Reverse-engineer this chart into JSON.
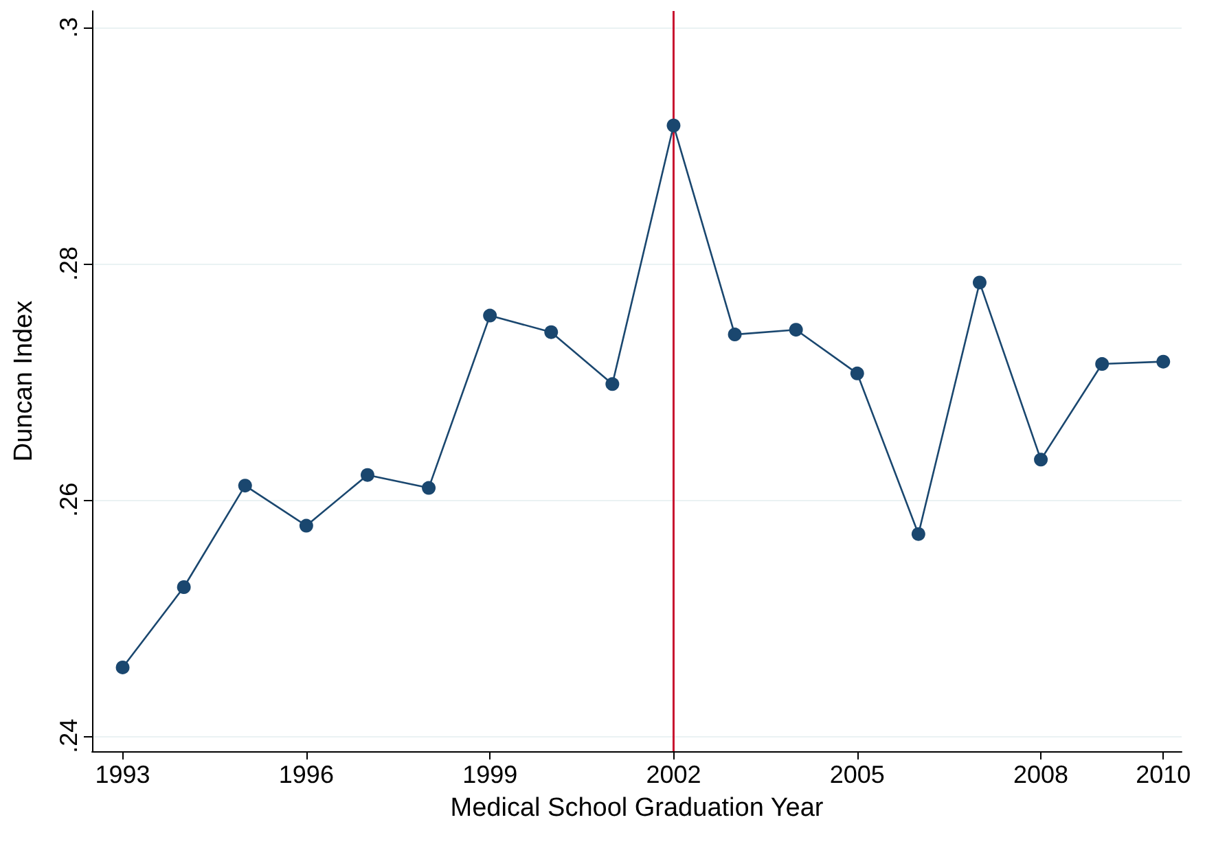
{
  "chart_data": {
    "type": "line",
    "xlabel": "Medical School Graduation Year",
    "ylabel": "Duncan Index",
    "x": [
      1993,
      1994,
      1995,
      1996,
      1997,
      1998,
      1999,
      2000,
      2001,
      2002,
      2003,
      2004,
      2005,
      2006,
      2007,
      2008,
      2009,
      2010
    ],
    "series": [
      {
        "color": "#1a476f",
        "values": [
          0.2458,
          0.2526,
          0.2612,
          0.2578,
          0.2621,
          0.261,
          0.2756,
          0.2742,
          0.2698,
          0.2917,
          0.274,
          0.2744,
          0.2707,
          0.2571,
          0.2784,
          0.2634,
          0.2715,
          0.2717
        ]
      }
    ],
    "xlim": [
      1992.5,
      2010.3
    ],
    "xticks": [
      1993,
      1996,
      1999,
      2002,
      2005,
      2008,
      2010
    ],
    "ylim": [
      0.2387,
      0.3014
    ],
    "yticks": [
      {
        "value": 0.24,
        "label": ".24"
      },
      {
        "value": 0.26,
        "label": ".26"
      },
      {
        "value": 0.28,
        "label": ".28"
      },
      {
        "value": 0.3,
        "label": ".3"
      }
    ],
    "ref_lines": [
      {
        "axis": "x",
        "value": 2002,
        "color": "#c8102e"
      }
    ],
    "grid": "y",
    "marker": "circle",
    "line_style": "solid"
  }
}
